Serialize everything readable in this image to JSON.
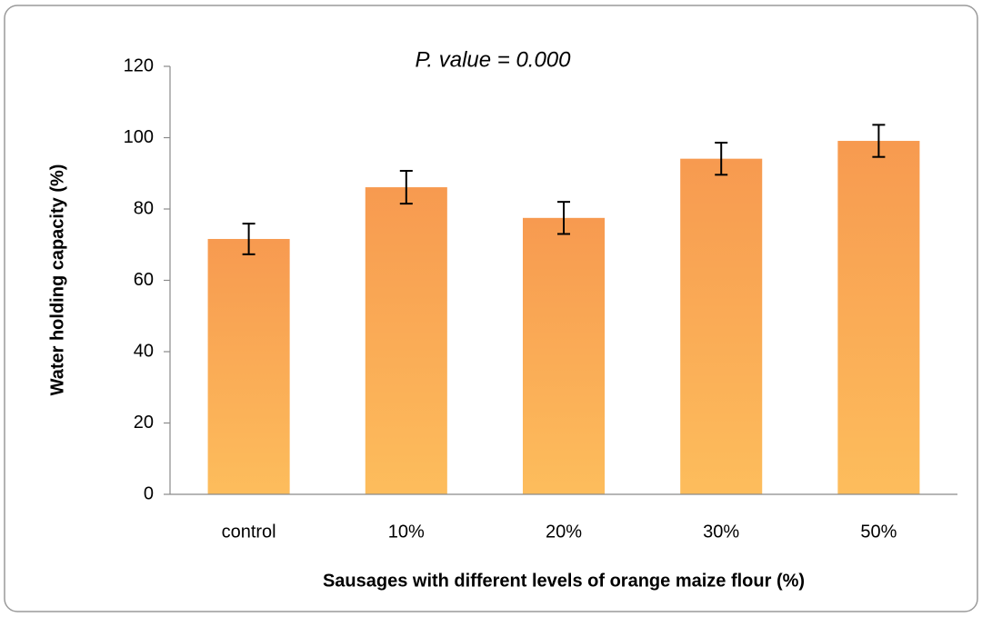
{
  "chart_data": {
    "type": "bar",
    "annotation": "P. value = 0.000",
    "xlabel": "Sausages with different levels of orange maize flour (%)",
    "ylabel": "Water holding capacity (%)",
    "categories": [
      "control",
      "10%",
      "20%",
      "30%",
      "50%"
    ],
    "values": [
      71.6,
      86.1,
      77.5,
      94.1,
      99.1
    ],
    "errors": [
      4.3,
      4.6,
      4.5,
      4.5,
      4.5
    ],
    "color": "#f79a50",
    "ylim": [
      0,
      120
    ],
    "yticks": [
      0,
      20,
      40,
      60,
      80,
      100,
      120
    ],
    "grid": false
  }
}
